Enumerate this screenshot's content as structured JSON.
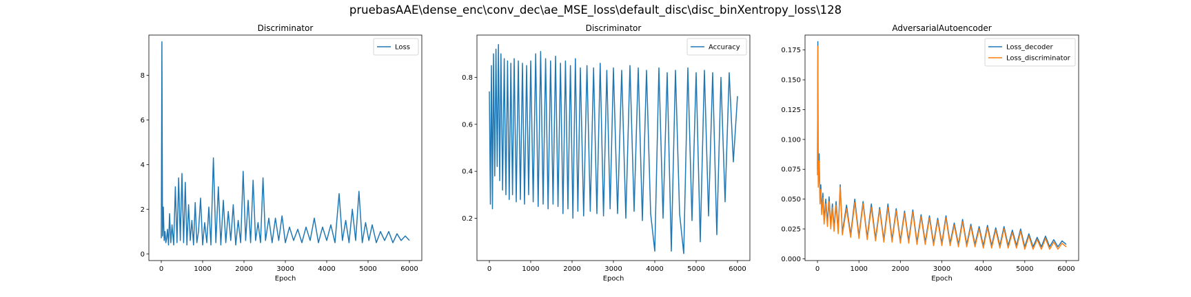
{
  "figure": {
    "suptitle": "pruebasAAE\\dense_enc\\conv_dec\\ae_MSE_loss\\default_disc\\disc_binXentropy_loss\\128",
    "colors": {
      "blue": "#1f77b4",
      "orange": "#ff7f0e"
    }
  },
  "chart_data": [
    {
      "type": "line",
      "title": "Discriminator",
      "xlabel": "Epoch",
      "ylabel": "",
      "xlim": [
        -300,
        6300
      ],
      "ylim": [
        -0.3,
        9.8
      ],
      "xticks": [
        0,
        1000,
        2000,
        3000,
        4000,
        5000,
        6000
      ],
      "yticks": [
        0,
        2,
        4,
        6,
        8
      ],
      "legend": "top-right",
      "series": [
        {
          "name": "Loss",
          "color": "#1f77b4",
          "x": [
            0,
            15,
            30,
            50,
            70,
            90,
            110,
            130,
            150,
            175,
            200,
            230,
            260,
            300,
            340,
            380,
            420,
            460,
            500,
            540,
            580,
            620,
            660,
            700,
            740,
            780,
            820,
            860,
            900,
            950,
            1000,
            1050,
            1100,
            1150,
            1200,
            1260,
            1320,
            1380,
            1440,
            1500,
            1560,
            1620,
            1680,
            1740,
            1800,
            1860,
            1920,
            1980,
            2040,
            2100,
            2160,
            2220,
            2280,
            2340,
            2400,
            2460,
            2520,
            2600,
            2680,
            2760,
            2840,
            2920,
            3000,
            3100,
            3200,
            3300,
            3400,
            3500,
            3600,
            3700,
            3800,
            3900,
            4000,
            4100,
            4200,
            4300,
            4380,
            4460,
            4540,
            4620,
            4700,
            4780,
            4860,
            4940,
            5020,
            5100,
            5200,
            5300,
            5400,
            5500,
            5600,
            5700,
            5800,
            5900,
            6000
          ],
          "values": [
            0.7,
            9.5,
            0.8,
            2.1,
            0.6,
            1.0,
            0.5,
            0.7,
            1.1,
            0.4,
            1.8,
            0.5,
            1.3,
            0.4,
            3.0,
            0.5,
            3.4,
            0.6,
            3.6,
            0.5,
            3.2,
            0.4,
            2.2,
            0.6,
            1.5,
            0.4,
            2.3,
            0.5,
            1.0,
            2.5,
            0.4,
            1.4,
            0.5,
            2.1,
            0.4,
            4.3,
            0.5,
            3.0,
            0.4,
            2.4,
            0.5,
            1.9,
            0.6,
            2.2,
            0.4,
            1.5,
            0.5,
            3.7,
            0.6,
            2.4,
            0.5,
            3.3,
            0.6,
            1.4,
            0.5,
            3.4,
            0.6,
            1.6,
            0.5,
            1.6,
            0.6,
            1.7,
            0.5,
            1.2,
            0.6,
            1.1,
            0.5,
            1.2,
            0.6,
            1.6,
            0.5,
            1.2,
            0.6,
            1.3,
            0.5,
            2.7,
            0.6,
            1.5,
            0.5,
            2.0,
            0.6,
            2.8,
            0.5,
            1.4,
            0.6,
            1.3,
            0.5,
            1.0,
            0.6,
            1.0,
            0.5,
            0.9,
            0.6,
            0.8,
            0.6
          ]
        }
      ]
    },
    {
      "type": "line",
      "title": "Discriminator",
      "xlabel": "Epoch",
      "ylabel": "",
      "xlim": [
        -300,
        6300
      ],
      "ylim": [
        0.02,
        0.98
      ],
      "xticks": [
        0,
        1000,
        2000,
        3000,
        4000,
        5000,
        6000
      ],
      "yticks": [
        0.2,
        0.4,
        0.6,
        0.8
      ],
      "legend": "top-right",
      "series": [
        {
          "name": "Accuracy",
          "color": "#1f77b4",
          "x": [
            0,
            25,
            50,
            75,
            100,
            130,
            160,
            190,
            220,
            250,
            280,
            320,
            360,
            400,
            440,
            480,
            520,
            560,
            600,
            650,
            700,
            750,
            800,
            850,
            900,
            950,
            1000,
            1060,
            1120,
            1180,
            1240,
            1300,
            1360,
            1420,
            1480,
            1540,
            1600,
            1660,
            1720,
            1780,
            1840,
            1900,
            1960,
            2020,
            2080,
            2140,
            2200,
            2280,
            2360,
            2440,
            2520,
            2600,
            2680,
            2760,
            2840,
            2920,
            3000,
            3100,
            3200,
            3300,
            3400,
            3500,
            3600,
            3700,
            3800,
            3900,
            4000,
            4100,
            4200,
            4300,
            4400,
            4500,
            4600,
            4700,
            4800,
            4900,
            5000,
            5100,
            5200,
            5300,
            5400,
            5500,
            5600,
            5700,
            5800,
            5900,
            6000
          ],
          "values": [
            0.74,
            0.26,
            0.85,
            0.24,
            0.9,
            0.38,
            0.92,
            0.42,
            0.94,
            0.36,
            0.9,
            0.32,
            0.88,
            0.3,
            0.87,
            0.28,
            0.86,
            0.3,
            0.88,
            0.27,
            0.87,
            0.28,
            0.86,
            0.26,
            0.85,
            0.3,
            0.87,
            0.27,
            0.9,
            0.25,
            0.91,
            0.26,
            0.88,
            0.24,
            0.87,
            0.26,
            0.89,
            0.25,
            0.86,
            0.22,
            0.87,
            0.24,
            0.85,
            0.2,
            0.88,
            0.23,
            0.84,
            0.21,
            0.85,
            0.23,
            0.84,
            0.22,
            0.86,
            0.21,
            0.83,
            0.24,
            0.84,
            0.22,
            0.83,
            0.2,
            0.85,
            0.23,
            0.84,
            0.19,
            0.83,
            0.22,
            0.06,
            0.84,
            0.2,
            0.82,
            0.06,
            0.83,
            0.22,
            0.05,
            0.84,
            0.19,
            0.82,
            0.1,
            0.83,
            0.21,
            0.82,
            0.13,
            0.8,
            0.27,
            0.82,
            0.44,
            0.72
          ]
        }
      ]
    },
    {
      "type": "line",
      "title": "AdversarialAutoencoder",
      "xlabel": "Epoch",
      "ylabel": "",
      "xlim": [
        -300,
        6300
      ],
      "ylim": [
        -0.0015,
        0.1875
      ],
      "xticks": [
        0,
        1000,
        2000,
        3000,
        4000,
        5000,
        6000
      ],
      "yticks": [
        0.0,
        0.025,
        0.05,
        0.075,
        0.1,
        0.125,
        0.15,
        0.175
      ],
      "ytick_labels": [
        "0.000",
        "0.025",
        "0.050",
        "0.075",
        "0.100",
        "0.125",
        "0.150",
        "0.175"
      ],
      "legend": "top-right",
      "series": [
        {
          "name": "Loss_decoder",
          "color": "#1f77b4",
          "x": [
            0,
            10,
            20,
            40,
            60,
            80,
            100,
            130,
            160,
            200,
            240,
            280,
            320,
            360,
            400,
            450,
            500,
            550,
            600,
            700,
            800,
            900,
            1000,
            1100,
            1200,
            1300,
            1400,
            1500,
            1600,
            1700,
            1800,
            1900,
            2000,
            2100,
            2200,
            2300,
            2400,
            2500,
            2600,
            2700,
            2800,
            2900,
            3000,
            3100,
            3200,
            3300,
            3400,
            3500,
            3600,
            3700,
            3800,
            3900,
            4000,
            4100,
            4200,
            4300,
            4400,
            4500,
            4600,
            4700,
            4800,
            4900,
            5000,
            5100,
            5200,
            5300,
            5400,
            5500,
            5600,
            5700,
            5800,
            5900,
            6000
          ],
          "values": [
            0.075,
            0.182,
            0.065,
            0.088,
            0.05,
            0.062,
            0.04,
            0.055,
            0.032,
            0.05,
            0.03,
            0.052,
            0.028,
            0.046,
            0.026,
            0.048,
            0.024,
            0.062,
            0.022,
            0.045,
            0.02,
            0.05,
            0.019,
            0.048,
            0.018,
            0.046,
            0.017,
            0.043,
            0.016,
            0.046,
            0.016,
            0.042,
            0.015,
            0.04,
            0.015,
            0.041,
            0.014,
            0.037,
            0.014,
            0.036,
            0.013,
            0.034,
            0.013,
            0.036,
            0.013,
            0.03,
            0.012,
            0.033,
            0.012,
            0.029,
            0.012,
            0.027,
            0.011,
            0.028,
            0.011,
            0.026,
            0.011,
            0.027,
            0.011,
            0.024,
            0.011,
            0.025,
            0.01,
            0.021,
            0.01,
            0.018,
            0.01,
            0.019,
            0.01,
            0.016,
            0.01,
            0.015,
            0.012
          ]
        },
        {
          "name": "Loss_discriminator",
          "color": "#ff7f0e",
          "x": [
            0,
            10,
            20,
            40,
            60,
            80,
            100,
            130,
            160,
            200,
            240,
            280,
            320,
            360,
            400,
            450,
            500,
            550,
            600,
            700,
            800,
            900,
            1000,
            1100,
            1200,
            1300,
            1400,
            1500,
            1600,
            1700,
            1800,
            1900,
            2000,
            2100,
            2200,
            2300,
            2400,
            2500,
            2600,
            2700,
            2800,
            2900,
            3000,
            3100,
            3200,
            3300,
            3400,
            3500,
            3600,
            3700,
            3800,
            3900,
            4000,
            4100,
            4200,
            4300,
            4400,
            4500,
            4600,
            4700,
            4800,
            4900,
            5000,
            5100,
            5200,
            5300,
            5400,
            5500,
            5600,
            5700,
            5800,
            5900,
            6000
          ],
          "values": [
            0.07,
            0.178,
            0.06,
            0.082,
            0.046,
            0.058,
            0.037,
            0.051,
            0.029,
            0.046,
            0.027,
            0.048,
            0.025,
            0.043,
            0.023,
            0.045,
            0.021,
            0.06,
            0.02,
            0.042,
            0.018,
            0.047,
            0.017,
            0.046,
            0.016,
            0.043,
            0.015,
            0.041,
            0.014,
            0.043,
            0.014,
            0.04,
            0.013,
            0.038,
            0.013,
            0.039,
            0.012,
            0.035,
            0.012,
            0.034,
            0.011,
            0.032,
            0.011,
            0.034,
            0.011,
            0.028,
            0.01,
            0.031,
            0.01,
            0.027,
            0.01,
            0.025,
            0.009,
            0.026,
            0.009,
            0.024,
            0.009,
            0.025,
            0.009,
            0.022,
            0.009,
            0.023,
            0.008,
            0.019,
            0.008,
            0.016,
            0.008,
            0.017,
            0.008,
            0.014,
            0.008,
            0.013,
            0.01
          ]
        }
      ]
    }
  ]
}
